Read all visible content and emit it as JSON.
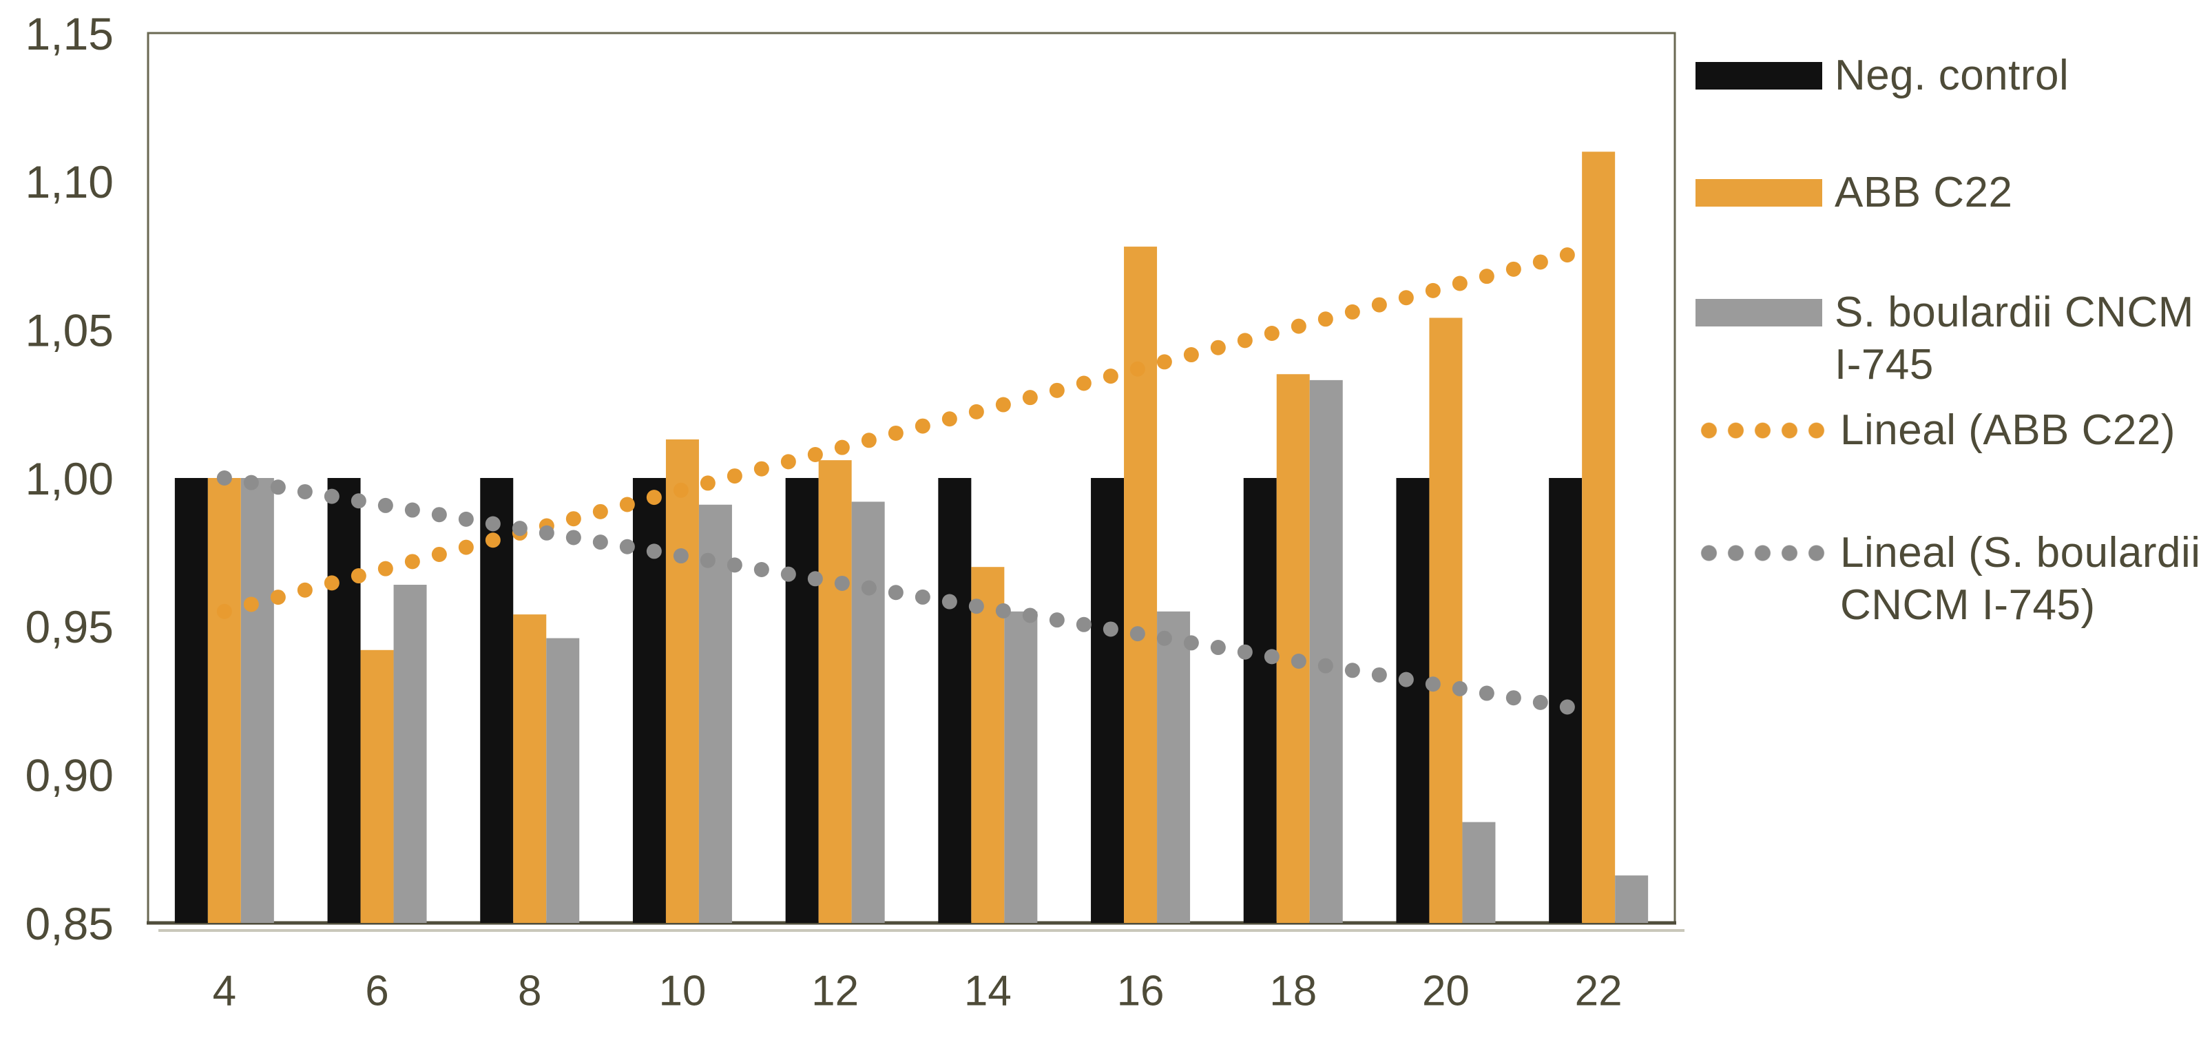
{
  "colors": {
    "control": "#111111",
    "abb_c22": "#E8A13B",
    "s_boulardii": "#9B9B9B",
    "trend_abb_c22": "#E89B30",
    "trend_s_boulardii": "#8D8D8D",
    "axis_line": "#6A6852",
    "axis_bottom": "#4F4D3B",
    "axis_shadow": "#C9C7BA",
    "tick_text": "#4E4B38",
    "legend_text": "#4E4B38",
    "background": "#FFFFFF"
  },
  "chart_data": {
    "type": "bar",
    "title": "",
    "xlabel": "",
    "ylabel": "",
    "categories": [
      4,
      6,
      8,
      10,
      12,
      14,
      16,
      18,
      20,
      22
    ],
    "series": [
      {
        "name": "Neg. control",
        "color_key": "control",
        "values": [
          1.0,
          1.0,
          1.0,
          1.0,
          1.0,
          1.0,
          1.0,
          1.0,
          1.0,
          1.0
        ]
      },
      {
        "name": "ABB C22",
        "color_key": "abb_c22",
        "values": [
          1.0,
          0.942,
          0.954,
          1.013,
          1.006,
          0.97,
          1.078,
          1.035,
          1.054,
          1.11
        ]
      },
      {
        "name": "S. boulardii CNCM I-745",
        "color_key": "s_boulardii",
        "values": [
          1.0,
          0.964,
          0.946,
          0.991,
          0.992,
          0.955,
          0.955,
          1.033,
          0.884,
          0.866
        ]
      }
    ],
    "trendlines": [
      {
        "name": "Lineal (ABB C22)",
        "color_key": "trend_abb_c22",
        "style": "dotted",
        "x": [
          4,
          22
        ],
        "y": [
          0.955,
          1.078
        ]
      },
      {
        "name": "Lineal (S. boulardii CNCM I-745)",
        "color_key": "trend_s_boulardii",
        "style": "dotted",
        "x": [
          4,
          22
        ],
        "y": [
          1.0,
          0.921
        ]
      }
    ],
    "ylim": [
      0.85,
      1.15
    ],
    "ytick_step": 0.05,
    "ytick_labels": [
      "1,15",
      "1,10",
      "1,05",
      "1,00",
      "0,95",
      "0,90",
      "0,85"
    ],
    "xtick_labels": [
      "4",
      "6",
      "8",
      "10",
      "12",
      "14",
      "16",
      "18",
      "20",
      "22"
    ],
    "grid": false,
    "legend_position": "right",
    "bar_baseline": 0.85
  },
  "legend": {
    "items": [
      {
        "label": "Neg. control",
        "label_lines": [
          "Neg. control"
        ],
        "swatch": "bar",
        "color_key": "control"
      },
      {
        "label": "ABB C22",
        "label_lines": [
          "ABB C22"
        ],
        "swatch": "bar",
        "color_key": "abb_c22"
      },
      {
        "label": "S. boulardii CNCM I-745",
        "label_lines": [
          "S. boulardii CNCM",
          "I-745"
        ],
        "swatch": "bar",
        "color_key": "s_boulardii"
      },
      {
        "label": "Lineal (ABB C22)",
        "label_lines": [
          "Lineal (ABB C22)"
        ],
        "swatch": "dots",
        "color_key": "trend_abb_c22"
      },
      {
        "label": "Lineal (S. boulardii CNCM I-745)",
        "label_lines": [
          "Lineal (S. boulardii",
          "CNCM I-745)"
        ],
        "swatch": "dots",
        "color_key": "trend_s_boulardii"
      }
    ]
  }
}
